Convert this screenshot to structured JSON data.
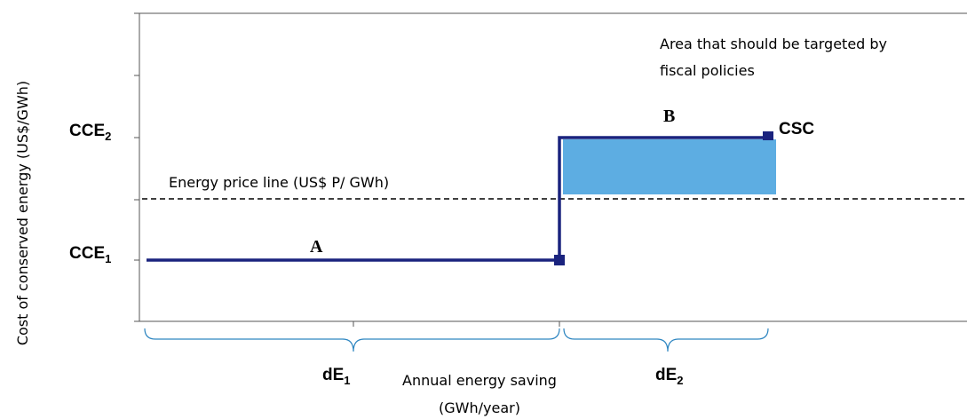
{
  "y_axis_label": "Cost of conserved energy (US$/GWh)",
  "levels": [
    {
      "label": "CCE",
      "sub": "2"
    },
    {
      "label": "CCE",
      "sub": "1"
    }
  ],
  "segments": {
    "a": "A",
    "b": "B",
    "end": "CSC"
  },
  "price_line": "Energy price line (US$ P/ GWh)",
  "annotation": [
    "Area that should be targeted by",
    "fiscal policies"
  ],
  "intervals": [
    {
      "label": "dE",
      "sub": "1"
    },
    {
      "label": "dE",
      "sub": "2"
    }
  ],
  "x_axis_label": [
    "Annual energy saving",
    "(GWh/year)"
  ]
}
